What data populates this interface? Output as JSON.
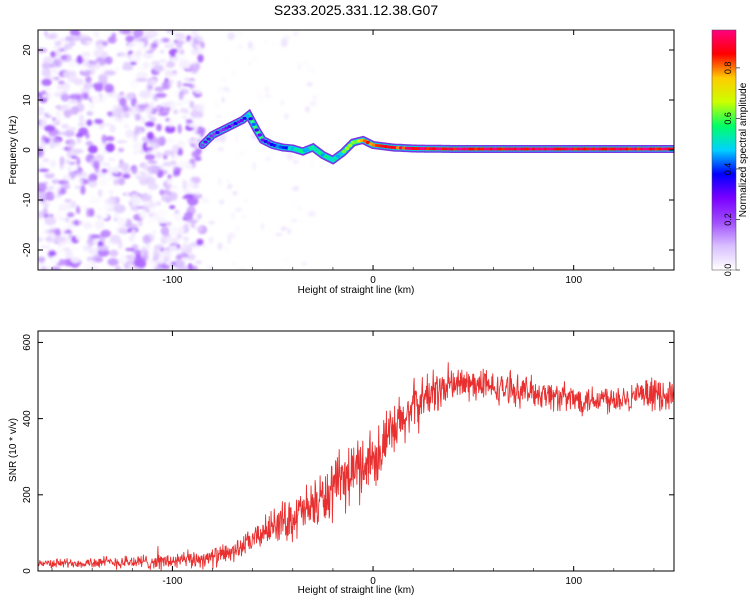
{
  "figure_title": "S233.2025.331.12.38.G07",
  "colorbar": {
    "label": "Normalized spectral amplitude",
    "range": [
      0.0,
      0.95
    ],
    "ticks": [
      "0.0",
      "0.2",
      "0.4",
      "0.6",
      "0.8"
    ],
    "tick_values": [
      0.0,
      0.2,
      0.4,
      0.6,
      0.8
    ],
    "colors": [
      "#ffffff",
      "#d9bfff",
      "#a04dff",
      "#7a00ff",
      "#0000ff",
      "#00d2ff",
      "#00ff66",
      "#ccff00",
      "#ffcc00",
      "#ff0000",
      "#ff0080"
    ]
  },
  "chart_data": [
    {
      "type": "heatmap",
      "title": "S233.2025.331.12.38.G07",
      "xlabel": "Height of straight line (km)",
      "ylabel": "Frequency (Hz)",
      "xlim": [
        -167,
        150
      ],
      "ylim": [
        -24,
        24
      ],
      "xticks": [
        -100,
        0,
        100
      ],
      "xtick_labels": [
        "-100",
        "0",
        "100"
      ],
      "yticks": [
        -20,
        -10,
        0,
        10,
        20
      ],
      "ytick_labels": [
        "-20",
        "-10",
        "0",
        "10",
        "20"
      ],
      "noise_region_km": [
        -167,
        -85
      ],
      "signal_track": {
        "x": [
          -85,
          -80,
          -75,
          -70,
          -65,
          -62,
          -58,
          -55,
          -50,
          -45,
          -40,
          -35,
          -30,
          -25,
          -20,
          -15,
          -10,
          -5,
          0,
          10,
          20,
          40,
          60,
          80,
          100,
          120,
          150
        ],
        "freq": [
          1,
          3,
          4,
          5,
          6,
          7,
          4,
          2,
          1,
          0.5,
          0.3,
          -0.3,
          0.5,
          -1,
          -2,
          -0.5,
          1.5,
          2,
          1,
          0.5,
          0.3,
          0.2,
          0.2,
          0.2,
          0.2,
          0.2,
          0.2
        ],
        "amplitude": [
          0.25,
          0.25,
          0.3,
          0.3,
          0.35,
          0.4,
          0.35,
          0.3,
          0.35,
          0.4,
          0.45,
          0.5,
          0.55,
          0.5,
          0.45,
          0.55,
          0.65,
          0.75,
          0.8,
          0.85,
          0.9,
          0.9,
          0.9,
          0.9,
          0.9,
          0.9,
          0.9
        ]
      }
    },
    {
      "type": "line",
      "xlabel": "Height of straight line (km)",
      "ylabel": "SNR (10 * v/v)",
      "xlim": [
        -167,
        150
      ],
      "ylim": [
        0,
        630
      ],
      "xticks": [
        -100,
        0,
        100
      ],
      "xtick_labels": [
        "-100",
        "0",
        "100"
      ],
      "yticks": [
        0,
        200,
        400,
        600
      ],
      "ytick_labels": [
        "0",
        "200",
        "400",
        "600"
      ],
      "color": "#e83030",
      "trend": {
        "x": [
          -167,
          -100,
          -80,
          -70,
          -60,
          -50,
          -40,
          -30,
          -20,
          -10,
          0,
          10,
          20,
          30,
          40,
          50,
          60,
          80,
          100,
          120,
          150
        ],
        "y": [
          20,
          25,
          35,
          50,
          80,
          120,
          140,
          170,
          210,
          260,
          300,
          360,
          430,
          470,
          490,
          490,
          480,
          470,
          450,
          455,
          465
        ]
      },
      "noise_amplitude": {
        "x": [
          -167,
          -60,
          -40,
          -20,
          0,
          20,
          40,
          60,
          150
        ],
        "y": [
          10,
          30,
          60,
          80,
          90,
          70,
          50,
          40,
          40
        ]
      }
    }
  ]
}
